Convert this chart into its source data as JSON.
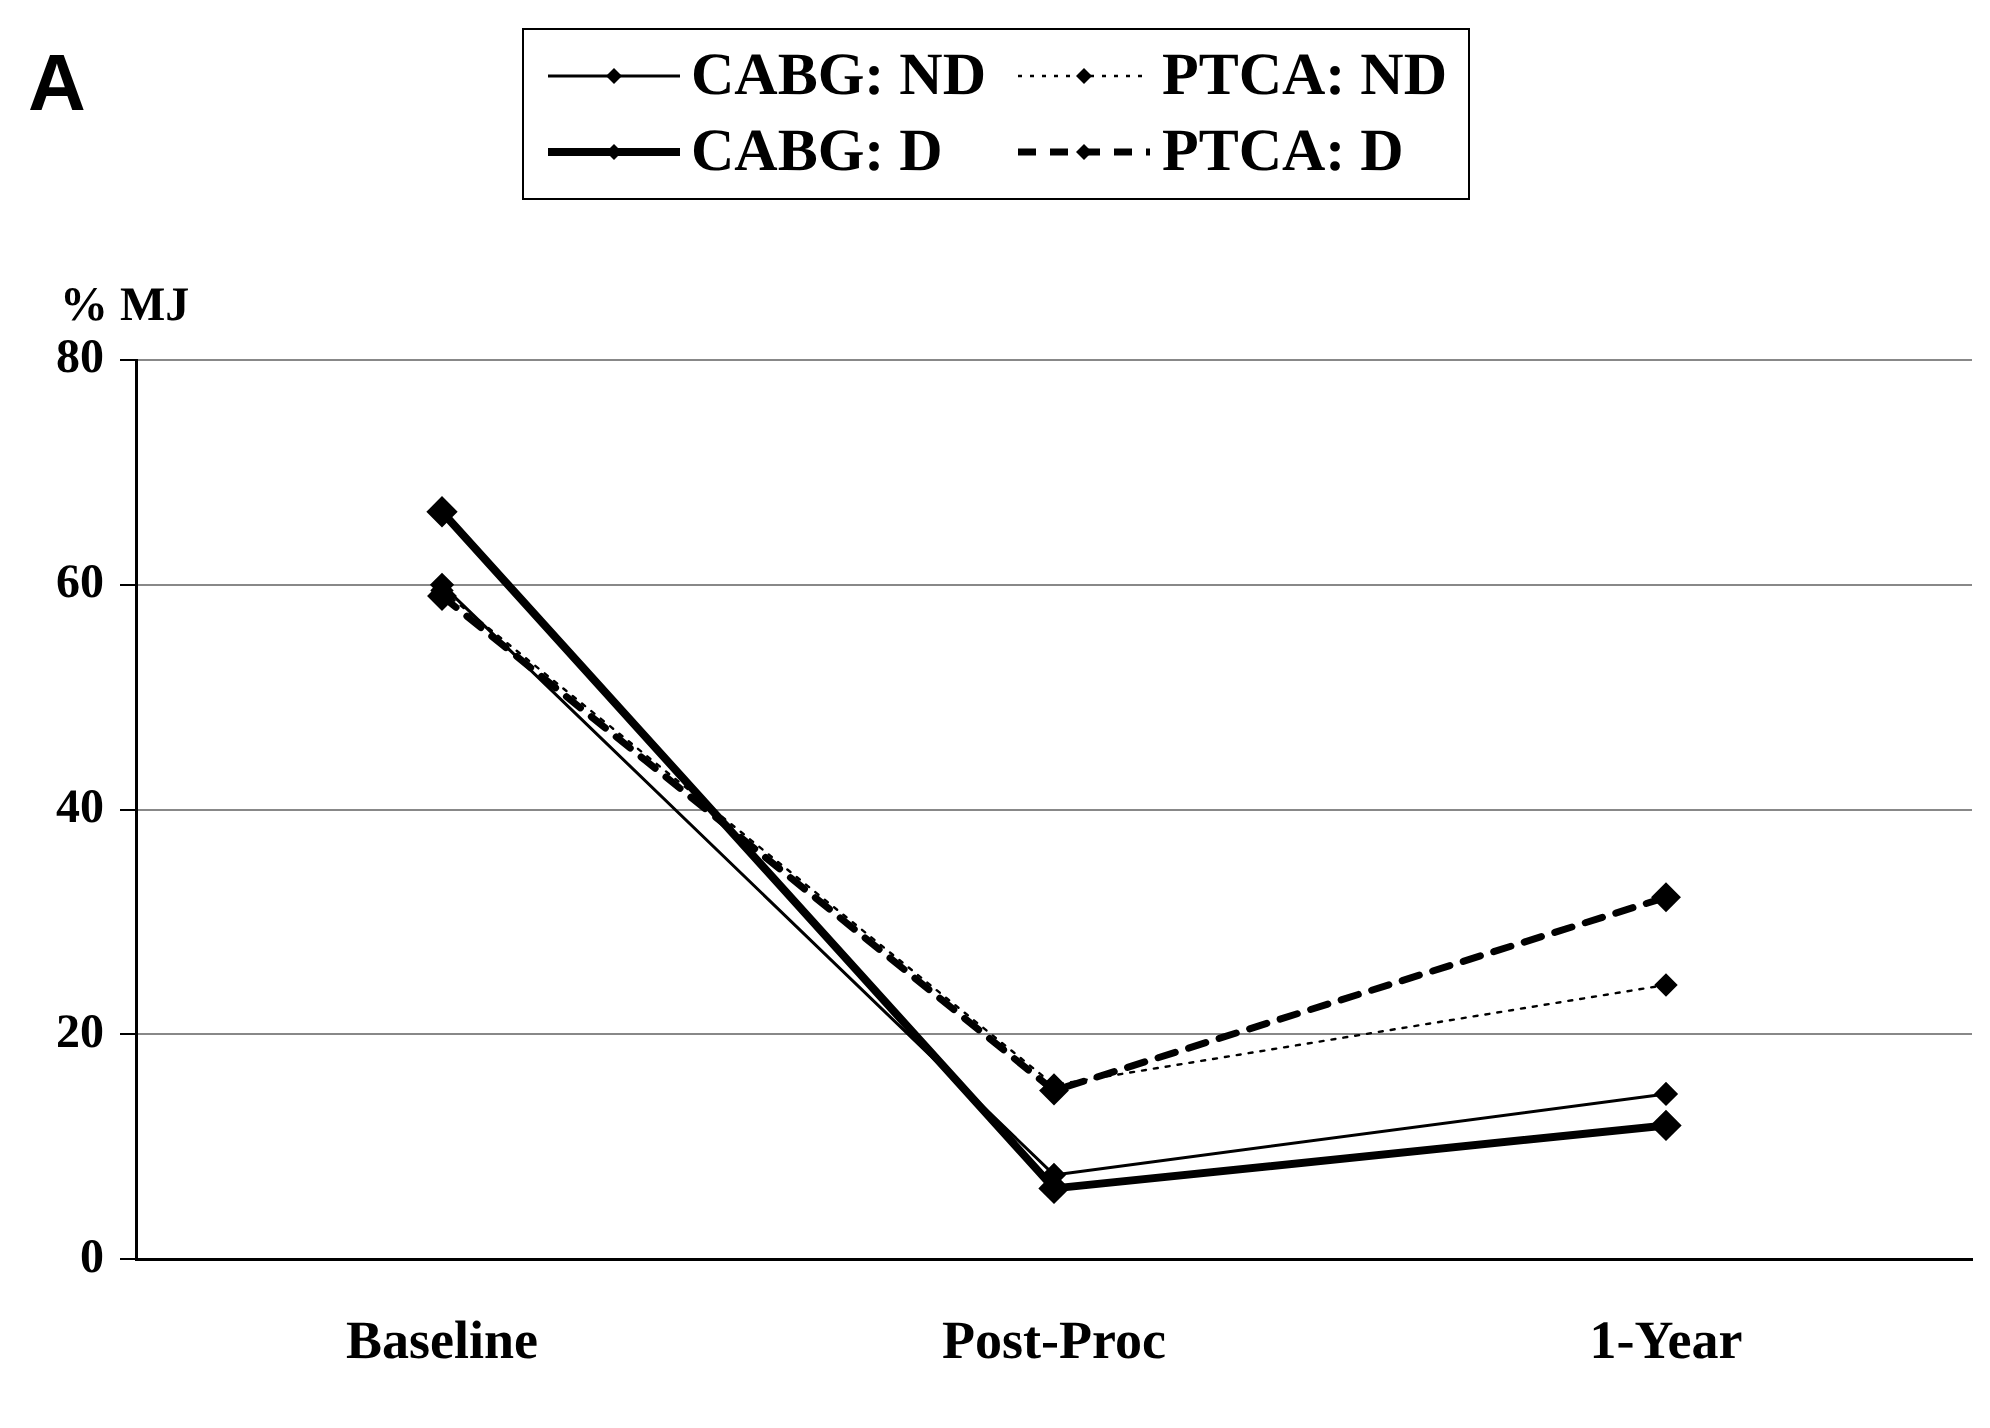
{
  "chart_data": {
    "type": "line",
    "title": "A",
    "ylabel": "% MJ",
    "categories": [
      "Baseline",
      "Post-Proc",
      "1-Year"
    ],
    "series": [
      {
        "name": "CABG: ND",
        "color": "#000000",
        "line_style": "solid",
        "values": [
          60,
          7.5,
          14.7
        ]
      },
      {
        "name": "PTCA: ND",
        "color": "#000000",
        "line_style": "dotted",
        "values": [
          59.5,
          15.5,
          24.4
        ]
      },
      {
        "name": "CABG: D",
        "color": "#000000",
        "line_style": "solid",
        "values": [
          66.5,
          6.3,
          11.9
        ]
      },
      {
        "name": "PTCA: D",
        "color": "#000000",
        "line_style": "dashed",
        "values": [
          59,
          15,
          32.2
        ]
      }
    ],
    "ylim": [
      0,
      80
    ],
    "yticks": [
      0,
      20,
      40,
      60,
      80
    ],
    "grid": "y",
    "legend": "top",
    "marker": "diamond"
  }
}
